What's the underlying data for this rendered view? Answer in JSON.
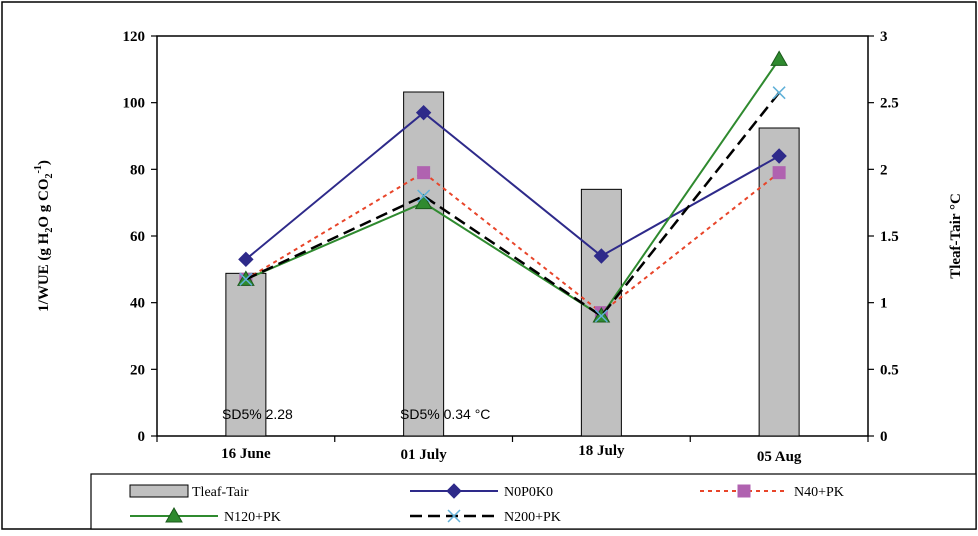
{
  "chart_data": {
    "type": "bar+line",
    "categories": [
      "16 June",
      "01 July",
      "18 July",
      "05 Aug"
    ],
    "y_left": {
      "label_parts": [
        "1/WUE (g H",
        "2",
        "O g CO",
        "2",
        "-1",
        ")"
      ],
      "lim": [
        0,
        120
      ],
      "ticks": [
        "0",
        "20",
        "40",
        "60",
        "80",
        "100",
        "120"
      ],
      "tick_values": [
        0,
        20,
        40,
        60,
        80,
        100,
        120
      ]
    },
    "y_right": {
      "label": "Tleaf-Tair °C",
      "lim": [
        0,
        3
      ],
      "ticks": [
        "0",
        "0.5",
        "1",
        "1.5",
        "2",
        "2.5",
        "3"
      ],
      "tick_values": [
        0,
        0.5,
        1,
        1.5,
        2,
        2.5,
        3
      ]
    },
    "bars": {
      "name": "Tleaf-Tair",
      "axis": "right",
      "values": [
        1.22,
        2.58,
        1.85,
        2.31
      ],
      "color": "#c0c0c0"
    },
    "series": [
      {
        "name": "N0P0K0",
        "values": [
          53,
          97,
          54,
          84
        ],
        "color": "#2e2a8a",
        "marker": "diamond",
        "dash": "solid"
      },
      {
        "name": "N40+PK",
        "values": [
          47,
          79,
          37,
          79
        ],
        "color": "#e8452a",
        "marker": "square",
        "marker_color": "#b062b0",
        "dash": "dotted"
      },
      {
        "name": "N120+PK",
        "values": [
          47,
          70,
          36,
          113
        ],
        "color": "#2f8a2f",
        "marker": "triangle",
        "dash": "solid"
      },
      {
        "name": "N200+PK",
        "values": [
          47,
          72,
          36,
          103
        ],
        "color": "#000000",
        "marker": "x",
        "marker_color": "#5fb0d8",
        "dash": "dashed"
      }
    ],
    "annotations": [
      "SD5% 2.28",
      "SD5% 0.34 °C"
    ],
    "grid": false,
    "legend_position": "bottom"
  }
}
